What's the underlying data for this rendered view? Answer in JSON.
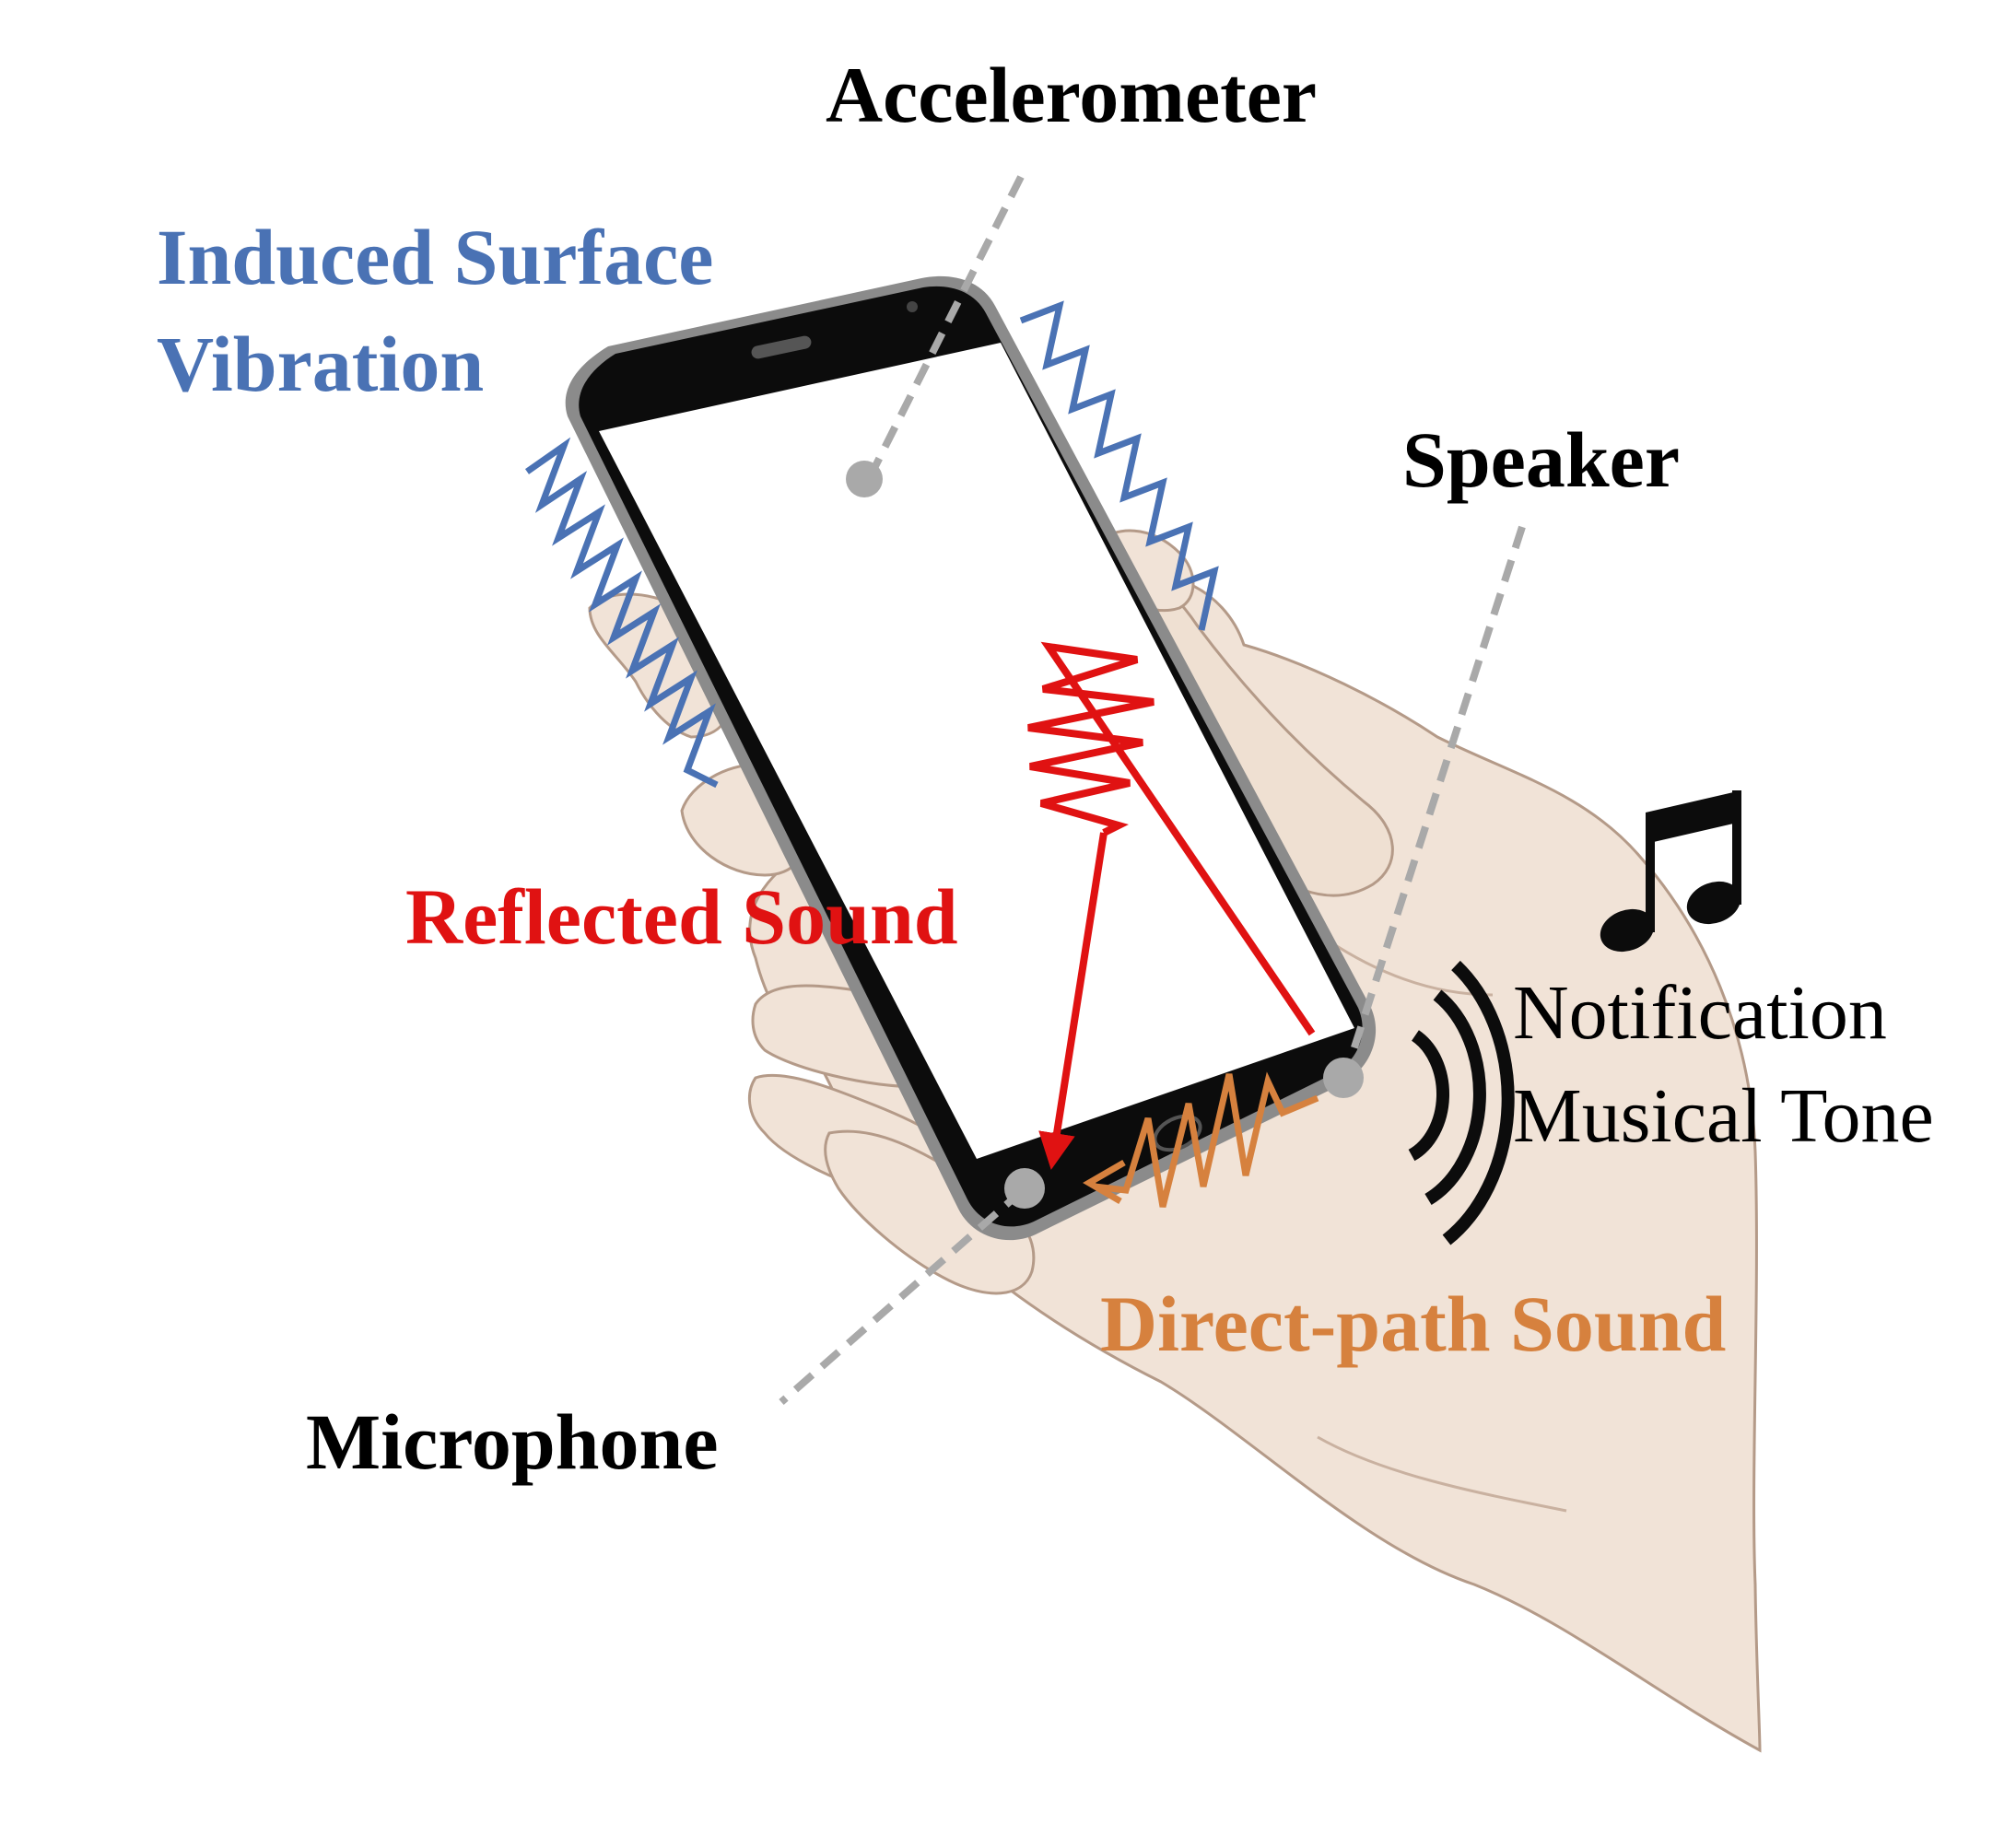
{
  "labels": {
    "accelerometer": "Accelerometer",
    "induced_line1": "Induced Surface",
    "induced_line2": "Vibration",
    "speaker": "Speaker",
    "reflected": "Reflected Sound",
    "notification_line1": "Notification",
    "notification_line2": "Musical Tone",
    "direct": "Direct-path Sound",
    "microphone": "Microphone"
  },
  "colors": {
    "induced_vibration": "#4a72b4",
    "reflected_sound": "#e01212",
    "direct_path_sound": "#d6813e",
    "leader_lines": "#a9a9a9",
    "phone_body": "#0c0c0c",
    "hand_skin": "#f1e3d7",
    "hand_outline": "#b49a88"
  },
  "icons": {
    "music_note": "beamed-eighth-notes-icon",
    "sound_waves": "speaker-waves-icon"
  }
}
